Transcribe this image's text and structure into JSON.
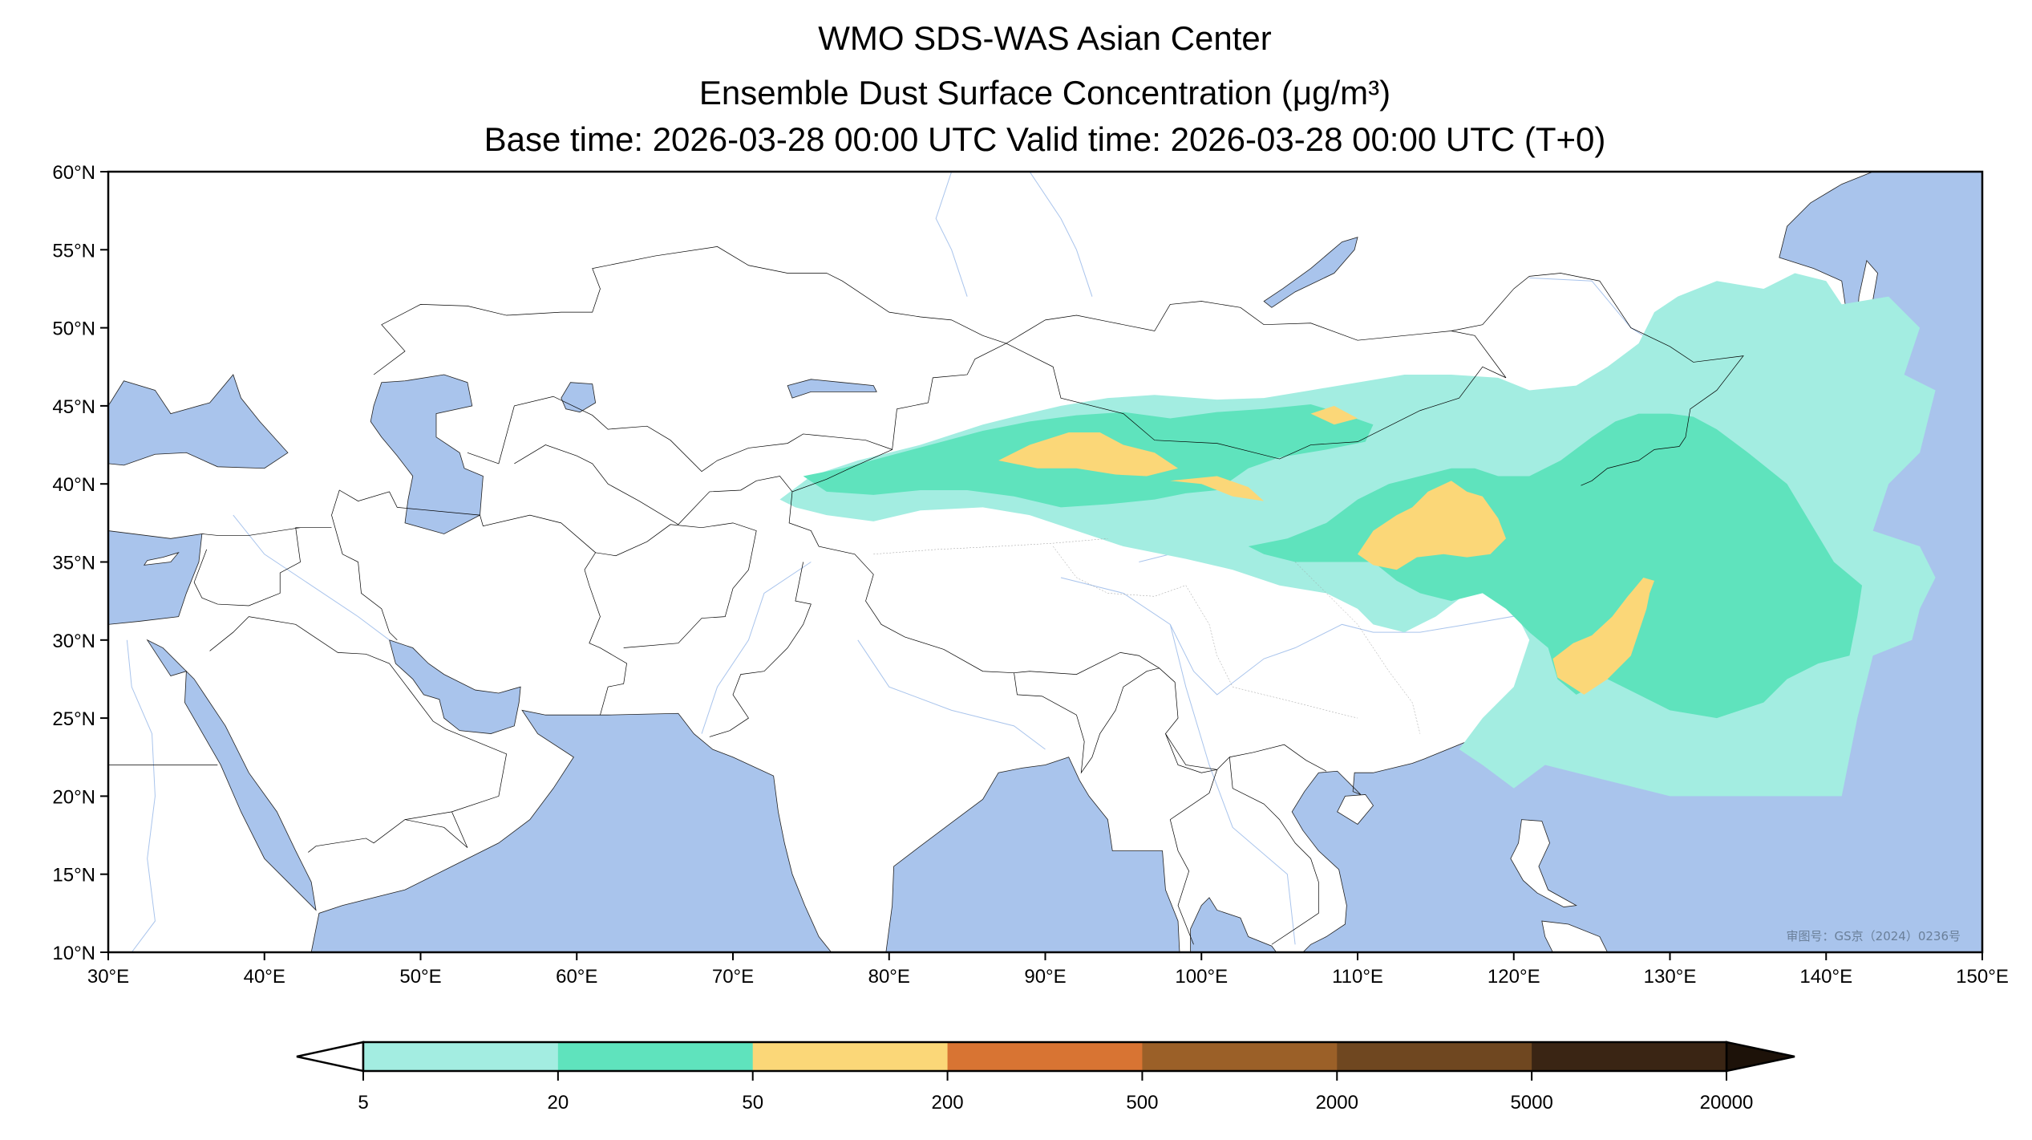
{
  "title": {
    "line1": "WMO SDS-WAS Asian Center",
    "line2": "Ensemble Dust Surface Concentration (μg/m³)",
    "line3": "Base time: 2026-03-28 00:00 UTC Valid time: 2026-03-28 00:00 UTC (T+0)"
  },
  "map": {
    "lon_range": [
      30,
      150
    ],
    "lat_range": [
      10,
      60
    ],
    "x_ticks": [
      "30°E",
      "40°E",
      "50°E",
      "60°E",
      "70°E",
      "80°E",
      "90°E",
      "100°E",
      "110°E",
      "120°E",
      "130°E",
      "140°E",
      "150°E"
    ],
    "y_ticks": [
      "60°N",
      "55°N",
      "50°N",
      "45°N",
      "40°N",
      "35°N",
      "30°N",
      "25°N",
      "20°N",
      "15°N",
      "10°N"
    ],
    "watermark": "审图号：GS京（2024）0236号",
    "ocean_color": "#a9c4ec",
    "land_color": "#ffffff"
  },
  "colorbar": {
    "levels": [
      "5",
      "20",
      "50",
      "200",
      "500",
      "2000",
      "5000",
      "20000"
    ],
    "colors": [
      "#a3ede1",
      "#5fe3bd",
      "#fbd778",
      "#d87433",
      "#9b6028",
      "#6f4720",
      "#3a2514"
    ],
    "over_color": "#1d1209",
    "under_color": "#ffffff"
  }
}
